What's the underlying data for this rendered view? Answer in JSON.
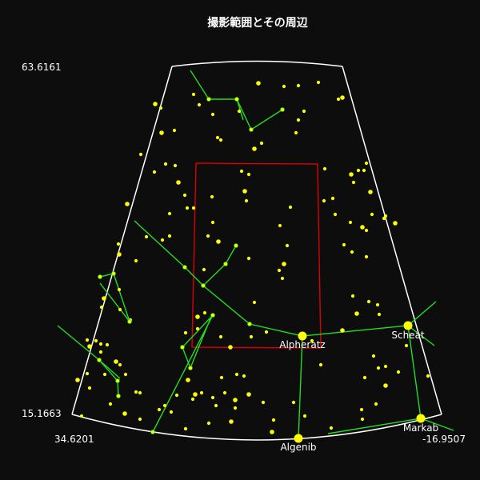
{
  "title": "撮影範囲とその周辺",
  "corner_labels": {
    "top_left": "63.6161",
    "bottom_left": "15.1663",
    "bottom_ra_left": "34.6201",
    "bottom_ra_right": "-16.9507"
  },
  "colors": {
    "background": "#0d0d0d",
    "boundary": "#ffffff",
    "constellation_lines": "#22dd22",
    "stars": "#ffff00",
    "field": "#dd0000",
    "text": "#ffffff"
  },
  "named_stars": [
    {
      "name": "Alpheratz"
    },
    {
      "name": "Scheat"
    },
    {
      "name": "Markab"
    },
    {
      "name": "Algenib"
    }
  ]
}
